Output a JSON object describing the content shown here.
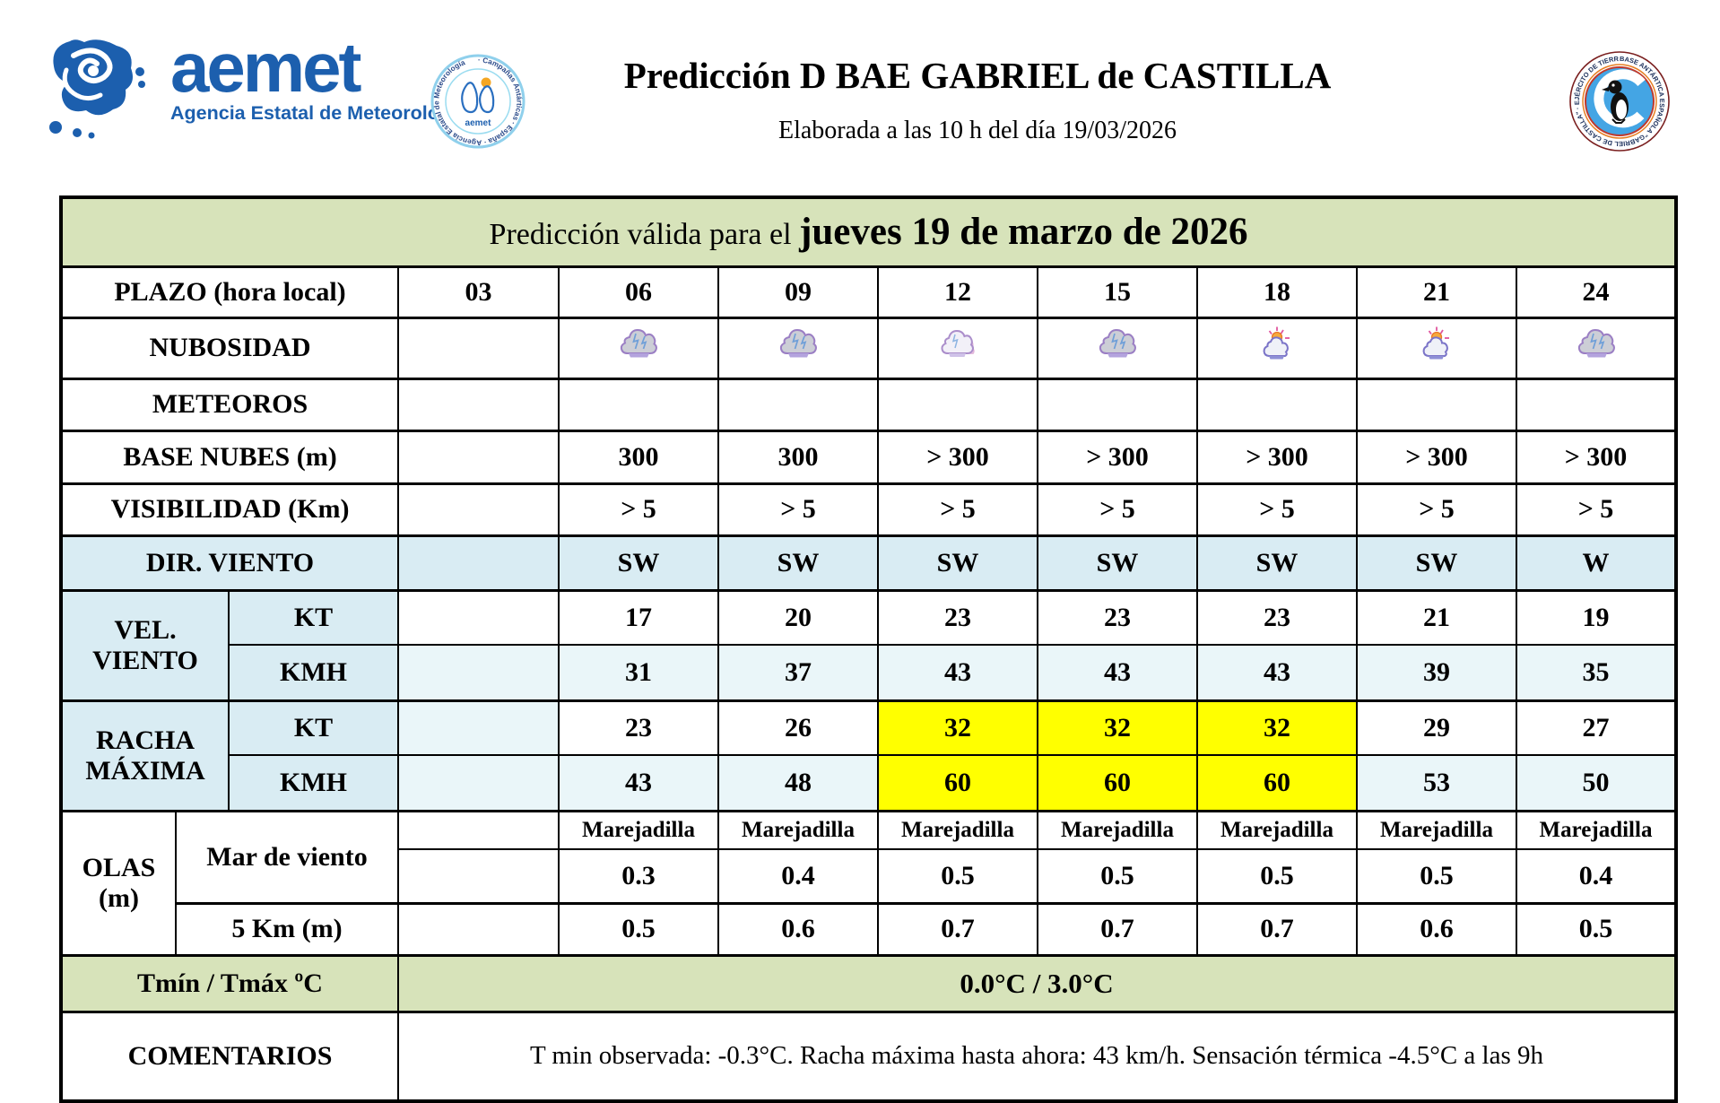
{
  "header": {
    "brand": {
      "name": "aemet",
      "tagline": "Agencia Estatal de Meteorología"
    },
    "campaigns_badge": {
      "ring_text": "· Campañas Antárticas · España · Agencia Estatal de Meteorología ",
      "center_text": "aemet"
    },
    "title": "Predicción D BAE GABRIEL de CASTILLA",
    "subtitle": "Elaborada a las 10 h del día 19/03/2026",
    "base_badge": {
      "ring_text": "BASE ANTÁRTICA ESPAÑOLA \"GABRIEL DE CASTILLA\" · EJÉRCITO DE TIERRA ·"
    }
  },
  "table": {
    "valid_prefix": "Predicción válida para el ",
    "valid_date": "jueves 19 de marzo de 2026",
    "plazo_label": "PLAZO (hora local)",
    "hours": [
      "03",
      "06",
      "09",
      "12",
      "15",
      "18",
      "21",
      "24"
    ],
    "nubosidad": {
      "label": "NUBOSIDAD",
      "icons": [
        "",
        "cloudy",
        "cloudy",
        "partly-cloudy",
        "cloudy",
        "sun-cloud",
        "sun-cloud",
        "cloudy"
      ]
    },
    "meteoros": {
      "label": "METEOROS",
      "values": [
        "",
        "",
        "",
        "",
        "",
        "",
        "",
        ""
      ]
    },
    "base_nubes": {
      "label": "BASE NUBES (m)",
      "values": [
        "",
        "300",
        "300",
        "> 300",
        "> 300",
        "> 300",
        "> 300",
        "> 300"
      ]
    },
    "visibilidad": {
      "label": "VISIBILIDAD (Km)",
      "values": [
        "",
        "> 5",
        "> 5",
        "> 5",
        "> 5",
        "> 5",
        "> 5",
        "> 5"
      ]
    },
    "dir_viento": {
      "label": "DIR. VIENTO",
      "values": [
        "",
        "SW",
        "SW",
        "SW",
        "SW",
        "SW",
        "SW",
        "W"
      ]
    },
    "vel_viento": {
      "label": "VEL. VIENTO",
      "kt": {
        "label": "KT",
        "values": [
          "",
          "17",
          "20",
          "23",
          "23",
          "23",
          "21",
          "19"
        ]
      },
      "kmh": {
        "label": "KMH",
        "values": [
          "",
          "31",
          "37",
          "43",
          "43",
          "43",
          "39",
          "35"
        ]
      }
    },
    "racha": {
      "label": "RACHA MÁXIMA",
      "kt": {
        "label": "KT",
        "values": [
          "",
          "23",
          "26",
          "32",
          "32",
          "32",
          "29",
          "27"
        ]
      },
      "kmh": {
        "label": "KMH",
        "values": [
          "",
          "43",
          "48",
          "60",
          "60",
          "60",
          "53",
          "50"
        ]
      }
    },
    "olas": {
      "label": "OLAS (m)",
      "mar_viento": {
        "label": "Mar de viento",
        "estado": [
          "",
          "Marejadilla",
          "Marejadilla",
          "Marejadilla",
          "Marejadilla",
          "Marejadilla",
          "Marejadilla",
          "Marejadilla"
        ],
        "altura": [
          "",
          "0.3",
          "0.4",
          "0.5",
          "0.5",
          "0.5",
          "0.5",
          "0.4"
        ]
      },
      "cinco_km": {
        "label": "5 Km (m)",
        "values": [
          "",
          "0.5",
          "0.6",
          "0.7",
          "0.7",
          "0.7",
          "0.6",
          "0.5"
        ]
      }
    },
    "tmin_tmax": {
      "label": "Tmín / Tmáx ºC",
      "value": "0.0°C / 3.0°C"
    },
    "comentarios": {
      "label": "COMENTARIOS",
      "value": "T min observada: -0.3°C. Racha máxima hasta ahora: 43 km/h. Sensación térmica -4.5°C a las 9h"
    }
  },
  "colors": {
    "header_green": "#d7e3ba",
    "wind_blue": "#d9ecf3",
    "row_tint": "#eaf6f9",
    "gust_highlight": "#ffff00",
    "aemet_blue": "#1c5fae"
  }
}
